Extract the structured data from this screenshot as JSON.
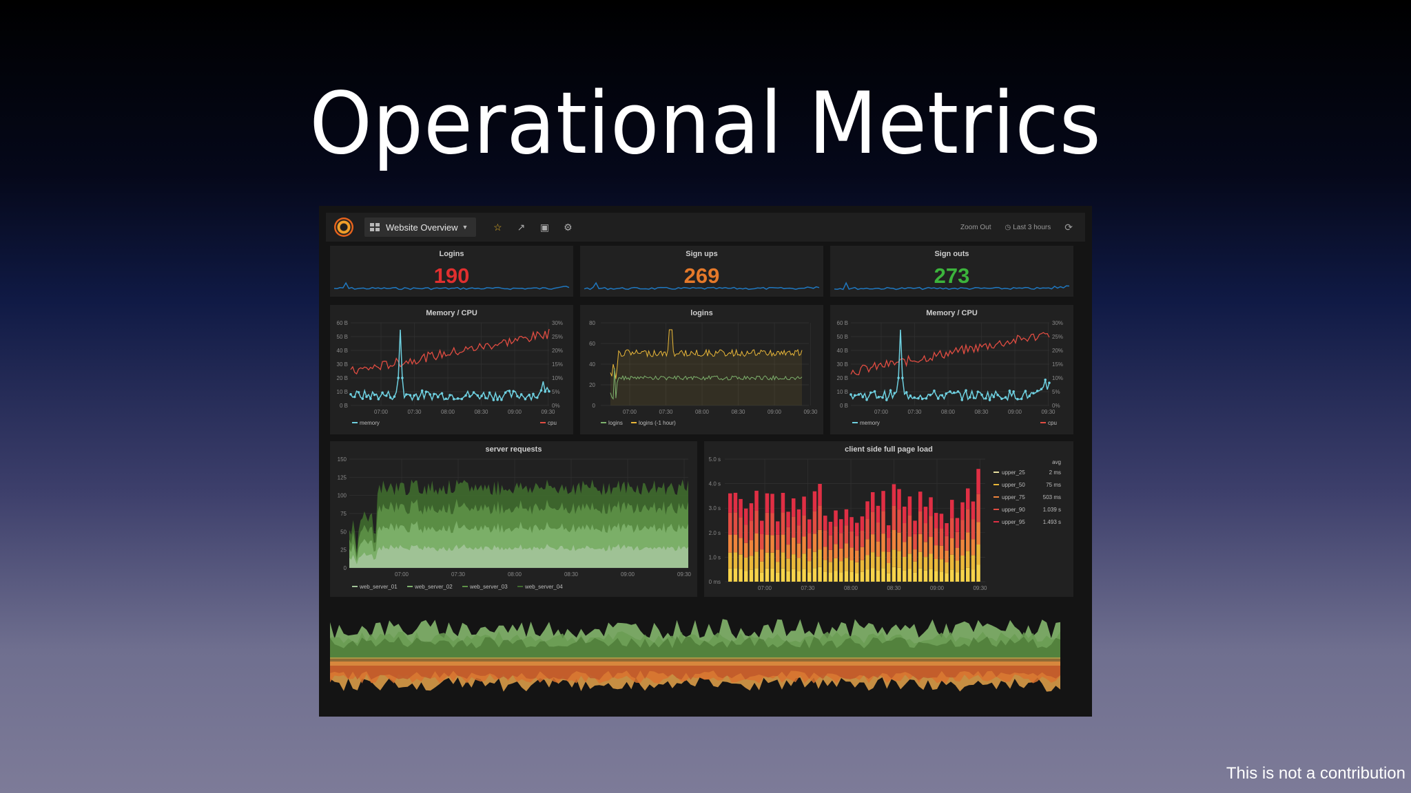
{
  "slide": {
    "title": "Operational Metrics",
    "footnote": "This is not a contribution"
  },
  "toolbar": {
    "dashboard_name": "Website Overview",
    "zoom_out": "Zoom Out",
    "time_range": "Last 3 hours",
    "icons": [
      "grafana-logo-icon",
      "dashboard-grid-icon",
      "star-icon",
      "share-icon",
      "save-icon",
      "gear-icon",
      "clock-icon",
      "refresh-icon"
    ]
  },
  "stats": [
    {
      "title": "Logins",
      "value": "190",
      "color": "#e02f2f"
    },
    {
      "title": "Sign ups",
      "value": "269",
      "color": "#e5792a"
    },
    {
      "title": "Sign outs",
      "value": "273",
      "color": "#3cb43c"
    }
  ],
  "panels": {
    "memcpu_title": "Memory / CPU",
    "logins_title": "logins",
    "server_title": "server requests",
    "client_title": "client side full page load",
    "time_ticks": [
      "07:00",
      "07:30",
      "08:00",
      "08:30",
      "09:00",
      "09:30"
    ],
    "mem_ticks": [
      "60 B",
      "50 B",
      "40 B",
      "30 B",
      "20 B",
      "10 B",
      "0 B"
    ],
    "cpu_ticks": [
      "30%",
      "25%",
      "20%",
      "15%",
      "10%",
      "5%",
      "0%"
    ],
    "logins_ticks": [
      "80",
      "60",
      "40",
      "20",
      "0"
    ],
    "server_ticks": [
      "150",
      "125",
      "100",
      "75",
      "50",
      "25",
      "0"
    ],
    "client_ticks": [
      "5.0 s",
      "4.0 s",
      "3.0 s",
      "2.0 s",
      "1.0 s",
      "0 ms"
    ],
    "memcpu_legend": [
      "memory",
      "cpu"
    ],
    "logins_legend": [
      "logins",
      "logins (-1 hour)"
    ],
    "server_legend": [
      "web_server_01",
      "web_server_02",
      "web_server_03",
      "web_server_04"
    ],
    "client_legend_header": "avg",
    "client_legend": [
      {
        "name": "upper_25",
        "value": "2 ms",
        "color": "#e8e0a0"
      },
      {
        "name": "upper_50",
        "value": "75 ms",
        "color": "#eab839"
      },
      {
        "name": "upper_75",
        "value": "503 ms",
        "color": "#ef843c"
      },
      {
        "name": "upper_90",
        "value": "1.039 s",
        "color": "#e24d42"
      },
      {
        "name": "upper_95",
        "value": "1.493 s",
        "color": "#e02f44"
      }
    ]
  },
  "colors": {
    "memory": "#6ed0e0",
    "cpu": "#e24d42",
    "logins": "#7eb26d",
    "logins_prev": "#eab839",
    "spark": "#1f78c1"
  }
}
